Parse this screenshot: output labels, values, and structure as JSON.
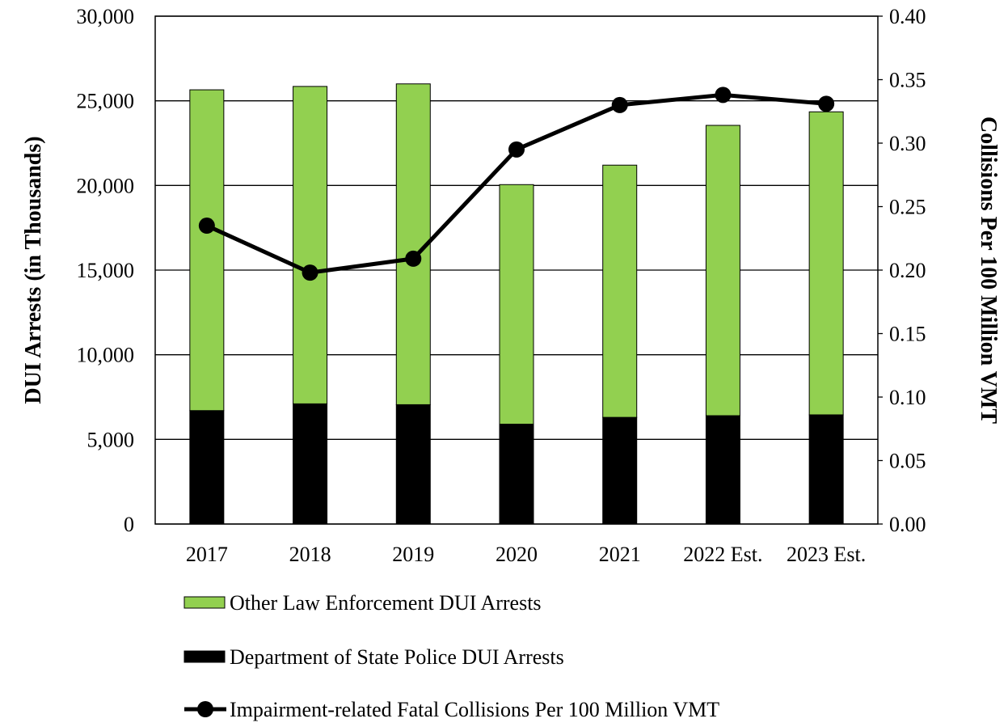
{
  "chart_data": {
    "type": "bar",
    "subtype": "stacked-bar-with-line-secondary-axis",
    "categories": [
      "2017",
      "2018",
      "2019",
      "2020",
      "2021",
      "2022 Est.",
      "2023 Est."
    ],
    "series": [
      {
        "name": "Department of State Police DUI Arrests",
        "type": "bar",
        "stack": "arrests",
        "axis": "left",
        "color": "#000000",
        "values": [
          6700,
          7100,
          7050,
          5900,
          6300,
          6400,
          6450
        ]
      },
      {
        "name": "Other Law Enforcement DUI Arrests",
        "type": "bar",
        "stack": "arrests",
        "axis": "left",
        "color": "#92D050",
        "values": [
          18950,
          18750,
          18950,
          14150,
          14900,
          17150,
          17900
        ]
      },
      {
        "name": "Impairment-related Fatal Collisions Per 100 Million VMT",
        "type": "line",
        "axis": "right",
        "color": "#000000",
        "marker": "circle",
        "values": [
          0.235,
          0.198,
          0.209,
          0.295,
          0.33,
          0.338,
          0.331
        ]
      }
    ],
    "ylabel": "DUI Arrests (in Thousands)",
    "y2label": "Collisions Per 100 Million VMT",
    "xlabel": "",
    "ylim": [
      0,
      30000
    ],
    "y2lim": [
      0,
      0.4
    ],
    "yticks": [
      "0",
      "5,000",
      "10,000",
      "15,000",
      "20,000",
      "25,000",
      "30,000"
    ],
    "y2ticks": [
      "0.00",
      "0.05",
      "0.10",
      "0.15",
      "0.20",
      "0.25",
      "0.30",
      "0.35",
      "0.40"
    ],
    "grid": true,
    "legend": {
      "position": "bottom",
      "order": [
        "Other Law Enforcement DUI Arrests",
        "Department of State Police DUI Arrests",
        "Impairment-related Fatal Collisions Per 100 Million VMT"
      ]
    }
  }
}
